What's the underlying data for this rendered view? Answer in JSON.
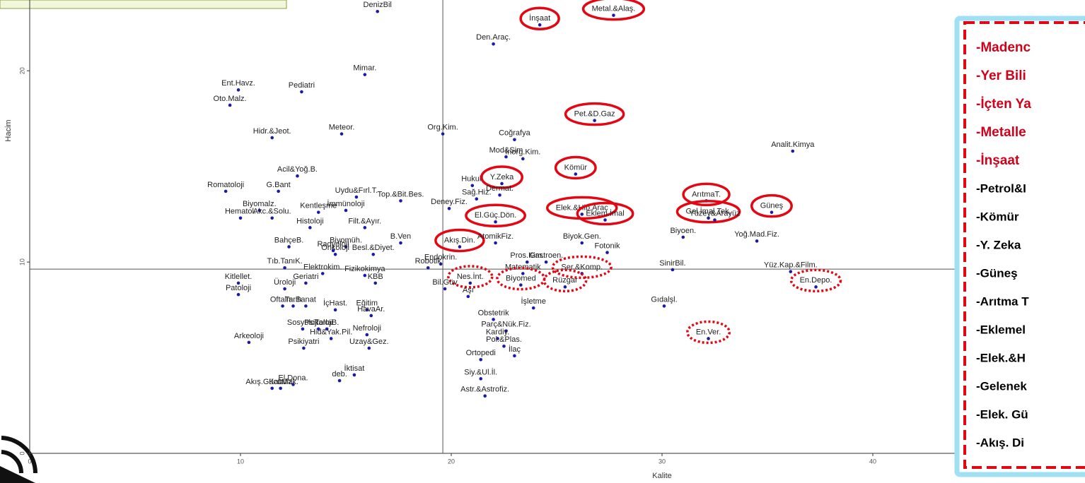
{
  "chart_data": {
    "type": "scatter",
    "x_label": "Kalite",
    "y_label": "Hacim",
    "color": "#1a1aa8",
    "xlim": [
      0,
      50
    ],
    "ylim": [
      0,
      23.7
    ],
    "xticks": [
      0,
      10,
      20,
      30,
      40,
      50
    ],
    "yticks": [
      0,
      10,
      20
    ],
    "vline": 19.6,
    "hline": 9.63,
    "points": [
      {
        "label": "DenizBil",
        "x": 16.5,
        "y": 23.1
      },
      {
        "label": "İnşaat",
        "x": 24.2,
        "y": 22.4,
        "circled": "solid"
      },
      {
        "label": "Metal.&Alaş.",
        "x": 27.7,
        "y": 22.9,
        "circled": "solid"
      },
      {
        "label": "Den.Araç.",
        "x": 22.0,
        "y": 21.4
      },
      {
        "label": "Mimar.",
        "x": 15.9,
        "y": 19.8
      },
      {
        "label": "Ent.Havz.",
        "x": 9.9,
        "y": 19.0
      },
      {
        "label": "Pediatri",
        "x": 12.9,
        "y": 18.9
      },
      {
        "label": "Oto.Malz.",
        "x": 9.5,
        "y": 18.2
      },
      {
        "label": "Pet.&D.Gaz",
        "x": 26.8,
        "y": 17.4,
        "circled": "solid"
      },
      {
        "label": "Hidr.&Jeot.",
        "x": 11.5,
        "y": 16.5
      },
      {
        "label": "Meteor.",
        "x": 14.8,
        "y": 16.7
      },
      {
        "label": "Org.Kim.",
        "x": 19.6,
        "y": 16.7
      },
      {
        "label": "Coğrafya",
        "x": 23.0,
        "y": 16.4
      },
      {
        "label": "Analit.Kimya",
        "x": 36.2,
        "y": 15.8
      },
      {
        "label": "Mod&Sim",
        "x": 22.6,
        "y": 15.5
      },
      {
        "label": "İnorg.Kim.",
        "x": 23.4,
        "y": 15.4
      },
      {
        "label": "Acil&Yoğ.B.",
        "x": 12.7,
        "y": 14.5
      },
      {
        "label": "Hukuk",
        "x": 21.0,
        "y": 14.0
      },
      {
        "label": "Y.Zeka",
        "x": 22.4,
        "y": 14.1,
        "circled": "solid"
      },
      {
        "label": "Kömür",
        "x": 25.9,
        "y": 14.6,
        "circled": "solid"
      },
      {
        "label": "Romatoloji",
        "x": 9.3,
        "y": 13.7
      },
      {
        "label": "G.Bant",
        "x": 11.8,
        "y": 13.7
      },
      {
        "label": "Uydu&Fırl.T.",
        "x": 15.5,
        "y": 13.4
      },
      {
        "label": "Top.&Bit.Bes.",
        "x": 17.6,
        "y": 13.2
      },
      {
        "label": "Sağ.Hiz.",
        "x": 21.2,
        "y": 13.3
      },
      {
        "label": "Dermat.",
        "x": 22.3,
        "y": 13.5
      },
      {
        "label": "ArıtmaT.",
        "x": 32.1,
        "y": 13.2,
        "circled": "solid"
      },
      {
        "label": "Elek.&Hib.Araç",
        "x": 26.2,
        "y": 12.5,
        "circled": "solid"
      },
      {
        "label": "Güneş",
        "x": 35.2,
        "y": 12.6,
        "circled": "solid"
      },
      {
        "label": "Biyomalz.",
        "x": 10.9,
        "y": 12.7
      },
      {
        "label": "Kentleşme",
        "x": 13.7,
        "y": 12.6
      },
      {
        "label": "İmmünoloji",
        "x": 15.0,
        "y": 12.7
      },
      {
        "label": "Deney.Fiz.",
        "x": 19.9,
        "y": 12.8
      },
      {
        "label": "Gel.İmal.Tek.",
        "x": 32.2,
        "y": 12.3,
        "circled": "solid"
      },
      {
        "label": "Eklem.İmal",
        "x": 27.3,
        "y": 12.2,
        "circled": "solid"
      },
      {
        "label": "El.Güç.Dön.",
        "x": 22.1,
        "y": 12.1,
        "circled": "solid"
      },
      {
        "label": "Hematol.",
        "x": 10.0,
        "y": 12.3
      },
      {
        "label": "Akc.&Solu.",
        "x": 11.5,
        "y": 12.3
      },
      {
        "label": "Histoloji",
        "x": 13.3,
        "y": 11.8
      },
      {
        "label": "Filt.&Ayır.",
        "x": 15.9,
        "y": 11.8
      },
      {
        "label": "Yüzey&Arayüz",
        "x": 32.5,
        "y": 12.2
      },
      {
        "label": "Biyok.Gen.",
        "x": 26.2,
        "y": 11.0
      },
      {
        "label": "Biyoen.",
        "x": 31.0,
        "y": 11.3
      },
      {
        "label": "BahçeB.",
        "x": 12.3,
        "y": 10.8
      },
      {
        "label": "Akış.Din.",
        "x": 20.4,
        "y": 10.8,
        "circled": "solid"
      },
      {
        "label": "AtomikFiz.",
        "x": 22.1,
        "y": 11.0
      },
      {
        "label": "Biyomüh.",
        "x": 15.0,
        "y": 10.8
      },
      {
        "label": "B.Ven",
        "x": 17.6,
        "y": 11.0
      },
      {
        "label": "Yoğ.Mad.Fiz.",
        "x": 34.5,
        "y": 11.1
      },
      {
        "label": "Radyoloji",
        "x": 14.4,
        "y": 10.6
      },
      {
        "label": "Onkoloji",
        "x": 14.5,
        "y": 10.4
      },
      {
        "label": "Besl.&Diyet.",
        "x": 16.3,
        "y": 10.4
      },
      {
        "label": "Endokrin.",
        "x": 19.5,
        "y": 9.9
      },
      {
        "label": "Fotonik",
        "x": 27.4,
        "y": 10.5
      },
      {
        "label": "Gastroen.",
        "x": 24.5,
        "y": 10.0
      },
      {
        "label": "Pros.Kim.",
        "x": 23.6,
        "y": 10.0
      },
      {
        "label": "Tıb.TanıK.",
        "x": 12.1,
        "y": 9.7
      },
      {
        "label": "Robotik",
        "x": 18.9,
        "y": 9.7
      },
      {
        "label": "SinirBil.",
        "x": 30.5,
        "y": 9.6
      },
      {
        "label": "Yüz.Kap.&Film.",
        "x": 36.1,
        "y": 9.5
      },
      {
        "label": "Elektrokim.",
        "x": 13.9,
        "y": 9.4
      },
      {
        "label": "Fizikokimya",
        "x": 15.9,
        "y": 9.3
      },
      {
        "label": "Matematik",
        "x": 23.4,
        "y": 9.4
      },
      {
        "label": "Ser.&Komp.",
        "x": 26.2,
        "y": 9.4,
        "circled": "dotted"
      },
      {
        "label": "Kitlellet.",
        "x": 9.9,
        "y": 8.9
      },
      {
        "label": "Geriatri",
        "x": 13.1,
        "y": 8.9
      },
      {
        "label": "Nes.İnt.",
        "x": 20.9,
        "y": 8.9,
        "circled": "dotted"
      },
      {
        "label": "Bil.Güv",
        "x": 19.7,
        "y": 8.6
      },
      {
        "label": "KBB",
        "x": 16.4,
        "y": 8.9
      },
      {
        "label": "Biyomed",
        "x": 23.3,
        "y": 8.8,
        "circled": "dotted"
      },
      {
        "label": "Rüzgar",
        "x": 25.4,
        "y": 8.7,
        "circled": "dotted"
      },
      {
        "label": "En.Depo.",
        "x": 37.3,
        "y": 8.7,
        "circled": "dotted"
      },
      {
        "label": "Patoloji",
        "x": 9.9,
        "y": 8.3
      },
      {
        "label": "Üroloji",
        "x": 12.1,
        "y": 8.6
      },
      {
        "label": "Aşı",
        "x": 20.8,
        "y": 8.2
      },
      {
        "label": "İşletme",
        "x": 23.9,
        "y": 7.6
      },
      {
        "label": "Gıdalşl.",
        "x": 30.1,
        "y": 7.7
      },
      {
        "label": "Eğitim",
        "x": 16.0,
        "y": 7.5
      },
      {
        "label": "Oftalm.",
        "x": 12.0,
        "y": 7.7
      },
      {
        "label": "Tarih",
        "x": 12.5,
        "y": 7.7
      },
      {
        "label": "Sanat",
        "x": 13.1,
        "y": 7.7
      },
      {
        "label": "İçHast.",
        "x": 14.5,
        "y": 7.5
      },
      {
        "label": "HavaAr.",
        "x": 16.2,
        "y": 7.2
      },
      {
        "label": "Obstetrik",
        "x": 22.0,
        "y": 7.0
      },
      {
        "label": "Parç&Nük.Fiz.",
        "x": 22.6,
        "y": 6.4
      },
      {
        "label": "TarlaB.",
        "x": 14.1,
        "y": 6.5
      },
      {
        "label": "Psikoloji",
        "x": 13.7,
        "y": 6.5
      },
      {
        "label": "Sosyoloji",
        "x": 12.95,
        "y": 6.5
      },
      {
        "label": "Nefroloji",
        "x": 16.0,
        "y": 6.2
      },
      {
        "label": "Kardiy.",
        "x": 22.2,
        "y": 6.0
      },
      {
        "label": "Pol.&Plas.",
        "x": 22.5,
        "y": 5.6
      },
      {
        "label": "Arkeoloji",
        "x": 10.4,
        "y": 5.8
      },
      {
        "label": "Hid&Yak.Pil.",
        "x": 14.3,
        "y": 6.0
      },
      {
        "label": "En.Ver.",
        "x": 32.2,
        "y": 6.0,
        "circled": "dotted"
      },
      {
        "label": "Psikiyatri",
        "x": 13.0,
        "y": 5.5
      },
      {
        "label": "İlaç",
        "x": 23.0,
        "y": 5.1
      },
      {
        "label": "Ortopedi",
        "x": 21.4,
        "y": 4.9
      },
      {
        "label": "Uzay&Gez.",
        "x": 16.1,
        "y": 5.5
      },
      {
        "label": "Akış.GücüMak.",
        "x": 11.5,
        "y": 3.4
      },
      {
        "label": "Kataliz",
        "x": 11.9,
        "y": 3.4
      },
      {
        "label": "El.Dona.",
        "x": 12.5,
        "y": 3.6
      },
      {
        "label": "İktisat",
        "x": 15.4,
        "y": 4.1
      },
      {
        "label": "deb.",
        "x": 14.7,
        "y": 3.8
      },
      {
        "label": "Siy.&Ul.İl.",
        "x": 21.4,
        "y": 3.9
      },
      {
        "label": "Astr.&Astrofiz.",
        "x": 21.6,
        "y": 3.0
      }
    ]
  },
  "side_panel": {
    "highlighted": [
      "-Madenc",
      "-Yer Bili",
      "-İçten Ya",
      "-Metalle",
      "-İnşaat"
    ],
    "items": [
      "-Petrol&I",
      "-Kömür",
      "-Y. Zeka",
      "-Güneş",
      "-Arıtma T",
      "-Eklemel",
      "-Elek.&H",
      "-Gelenek",
      "-Elek. Gü",
      "-Akış. Di"
    ]
  }
}
